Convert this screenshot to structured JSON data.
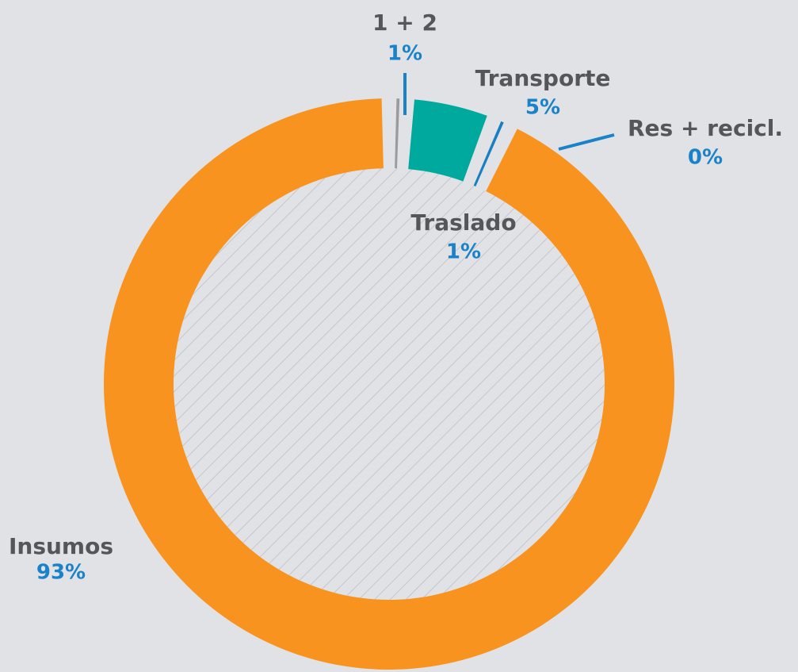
{
  "chart_data": {
    "type": "donut",
    "categories": [
      "1 + 2",
      "Transporte",
      "Res + recicl.",
      "Traslado",
      "Insumos"
    ],
    "values": [
      1,
      5,
      0,
      1,
      93
    ],
    "value_labels": [
      "1%",
      "5%",
      "0%",
      "1%",
      "93%"
    ],
    "colors": [
      "#9b9b9b",
      "#00a99d",
      "#1a7fc1",
      "#1a7fc1",
      "#f7931e"
    ]
  }
}
